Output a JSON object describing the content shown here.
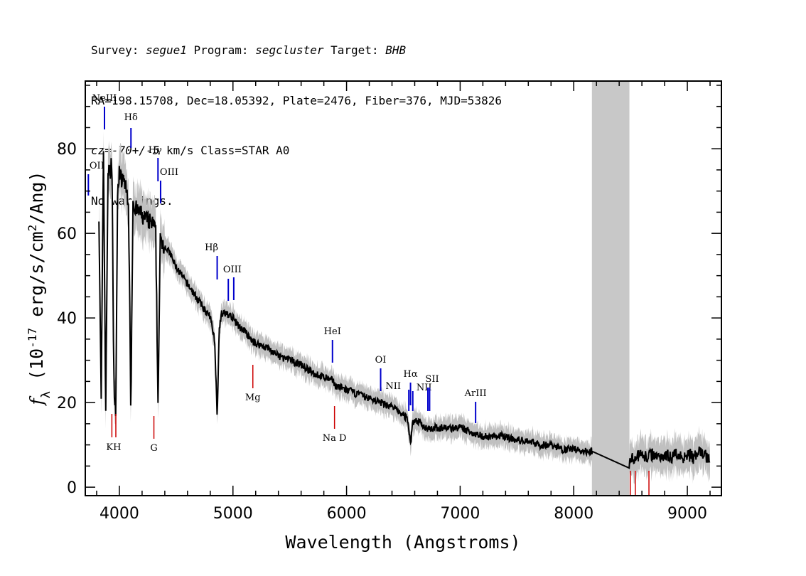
{
  "header": {
    "line1": {
      "survey_label": "Survey: ",
      "survey": "segue1",
      "program_label": " Program: ",
      "program": "segcluster",
      "target_label": " Target: ",
      "target": "BHB"
    },
    "line2": "RA=198.15708, Dec=18.05392, Plate=2476, Fiber=376, MJD=53826",
    "line3": {
      "cz": "cz=-70+/-5",
      "rest": " km/s Class=STAR A0"
    },
    "line4": "No warnings."
  },
  "chart_data": {
    "type": "line",
    "title": "",
    "xlabel": "Wavelength (Angstroms)",
    "ylabel": "f_λ (10^-17 erg/s/cm^2/Ang)",
    "xlim": [
      3700,
      9300
    ],
    "ylim": [
      -2,
      96
    ],
    "x_ticks": [
      4000,
      5000,
      6000,
      7000,
      8000,
      9000
    ],
    "y_ticks": [
      0,
      20,
      40,
      60,
      80
    ],
    "masked_region": [
      8160,
      8490
    ],
    "colors": {
      "flux": "#000000",
      "error_band": "#c0c0c0",
      "emission": "#0000cc",
      "absorption": "#cc0000",
      "mask": "#c8c8c8"
    },
    "series": [
      {
        "x": [
          3820,
          3840,
          3860,
          3880,
          3900,
          3920,
          3935,
          3950,
          3968,
          3985,
          4000,
          4020,
          4040,
          4060,
          4080,
          4101,
          4120,
          4140,
          4160,
          4180,
          4200,
          4250,
          4300,
          4320,
          4340,
          4360,
          4380,
          4400,
          4450,
          4500,
          4550,
          4600,
          4650,
          4700,
          4750,
          4800,
          4820,
          4840,
          4861,
          4880,
          4900,
          4950,
          5000,
          5050,
          5100,
          5150,
          5200,
          5300,
          5400,
          5500,
          5600,
          5700,
          5800,
          5890,
          5900,
          6000,
          6100,
          6200,
          6300,
          6400,
          6450,
          6500,
          6540,
          6563,
          6580,
          6600,
          6650,
          6700,
          6800,
          6900,
          7000,
          7100,
          7200,
          7300,
          7400,
          7500,
          7600,
          7700,
          7800,
          7900,
          8000,
          8100,
          8160,
          8490,
          8500,
          8550,
          8600,
          8650,
          8700,
          8750,
          8800,
          8850,
          8900,
          8950,
          9000,
          9050,
          9100,
          9150,
          9200
        ],
        "y": [
          65,
          20,
          80,
          18,
          75,
          74,
          78,
          26,
          18,
          70,
          75,
          72,
          73,
          70,
          68,
          19,
          68,
          66,
          65,
          65,
          64,
          63,
          62,
          60,
          20,
          58,
          58,
          57,
          55,
          52,
          50,
          48,
          46,
          44,
          42,
          40,
          38,
          34,
          17,
          38,
          41,
          41,
          40,
          38,
          37,
          35,
          34,
          33,
          31,
          30,
          29,
          27,
          26,
          25,
          24,
          23,
          22,
          21,
          20,
          19,
          18,
          17,
          16,
          10,
          15,
          16,
          15,
          14,
          14,
          14,
          14,
          13,
          12,
          12,
          12,
          11,
          11,
          10,
          10,
          9,
          9,
          8.5,
          8.5,
          4.5,
          7,
          7,
          8,
          7,
          8,
          7,
          8,
          7,
          8,
          7,
          8,
          7,
          8,
          8,
          6
        ]
      }
    ],
    "emission_lines": [
      {
        "name": "OII",
        "x": 3727
      },
      {
        "name": "NeIII",
        "x": 3869
      },
      {
        "name": "Hδ",
        "x": 4102
      },
      {
        "name": "Hγ",
        "x": 4340
      },
      {
        "name": "OIII",
        "x": 4363
      },
      {
        "name": "Hβ",
        "x": 4861
      },
      {
        "name": "OIII",
        "x": 4959
      },
      {
        "name": "OIII",
        "x": 5007
      },
      {
        "name": "HeI",
        "x": 5876
      },
      {
        "name": "OI",
        "x": 6300
      },
      {
        "name": "NII",
        "x": 6548
      },
      {
        "name": "Hα",
        "x": 6563
      },
      {
        "name": "NII",
        "x": 6583
      },
      {
        "name": "SII",
        "x": 6716
      },
      {
        "name": "SII",
        "x": 6731
      },
      {
        "name": "ArIII",
        "x": 7136
      }
    ],
    "absorption_lines": [
      {
        "name": "K",
        "x": 3934
      },
      {
        "name": "H",
        "x": 3969
      },
      {
        "name": "G",
        "x": 4304
      },
      {
        "name": "Mg",
        "x": 5175
      },
      {
        "name": "Na D",
        "x": 5894
      },
      {
        "name": "",
        "x": 8498
      },
      {
        "name": "",
        "x": 8542
      },
      {
        "name": "",
        "x": 8662
      }
    ],
    "emission_label_names_shown": [
      "OII",
      "NeIII",
      "Hδ",
      "Hγ",
      "OIII",
      "Hβ",
      "OIII",
      "HeI",
      "OI",
      "NII",
      "Hα",
      "NII",
      "SII",
      "ArIII"
    ],
    "absorption_label_names_shown": [
      "KH",
      "G",
      "Mg",
      "Na D"
    ]
  }
}
